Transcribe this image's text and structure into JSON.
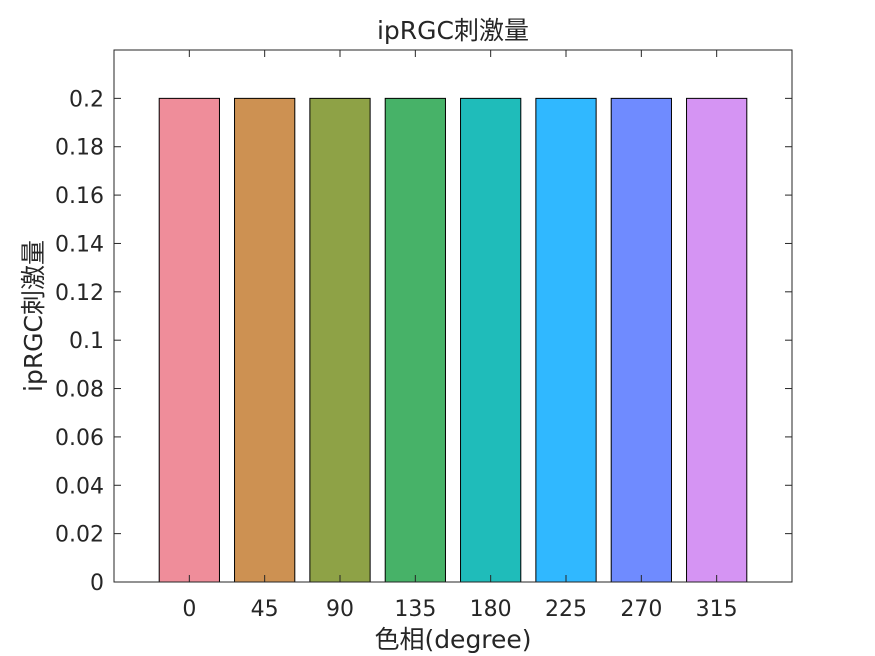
{
  "chart_data": {
    "type": "bar",
    "title": "ipRGC刺激量",
    "xlabel": "色相(degree)",
    "ylabel": "ipRGC刺激量",
    "categories": [
      "0",
      "45",
      "90",
      "135",
      "180",
      "225",
      "270",
      "315"
    ],
    "values": [
      0.2,
      0.2,
      0.2,
      0.2,
      0.2,
      0.2,
      0.2,
      0.2
    ],
    "colors": [
      "#ef8d9a",
      "#cd9152",
      "#8ea246",
      "#47b268",
      "#1fbcba",
      "#30b8ff",
      "#6f8bff",
      "#d594f3"
    ],
    "ylim": [
      0,
      0.22
    ],
    "yticks": [
      0,
      0.02,
      0.04,
      0.06,
      0.08,
      0.1,
      0.12,
      0.14,
      0.16,
      0.18,
      0.2
    ],
    "ytick_labels": [
      "0",
      "0.02",
      "0.04",
      "0.06",
      "0.08",
      "0.1",
      "0.12",
      "0.14",
      "0.16",
      "0.18",
      "0.2"
    ],
    "xlim": [
      -1,
      8
    ],
    "grid": false,
    "box": true,
    "axis_color": "#262626",
    "bar_edge_color": "#000000"
  }
}
